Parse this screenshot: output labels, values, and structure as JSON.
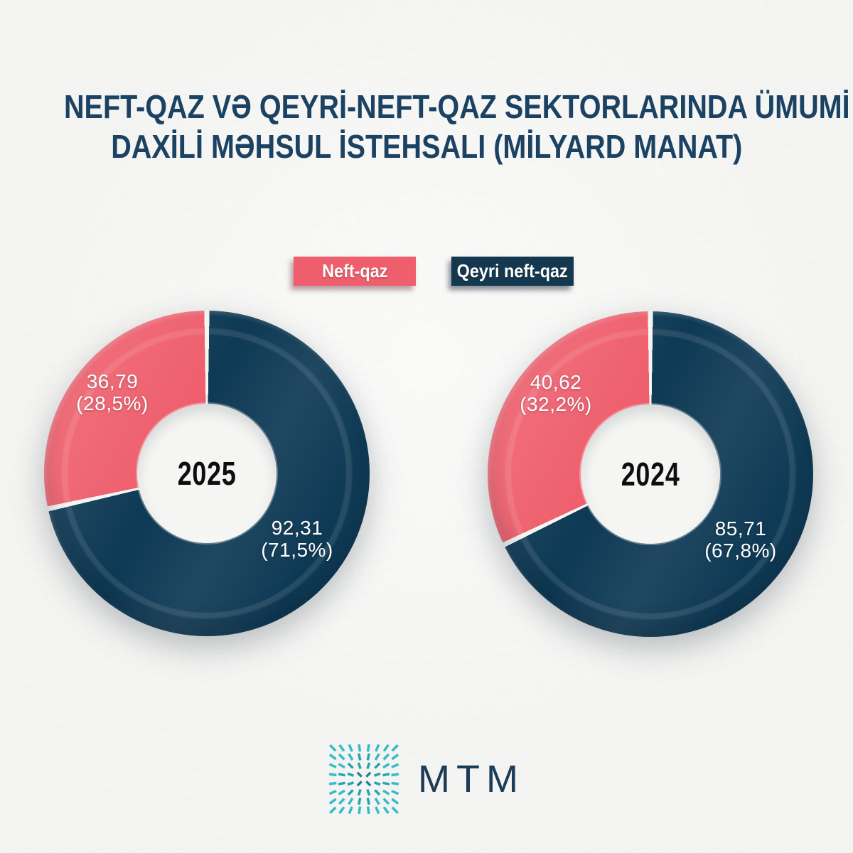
{
  "title": {
    "line1": "NEFT-QAZ VƏ QEYRİ-NEFT-QAZ SEKTORLARINDA ÜMUMİ",
    "line2": "DAXİLİ MƏHSUL İSTEHSALI (MİLYARD MANAT)"
  },
  "legend": {
    "position": "top",
    "items": [
      {
        "label": "Neft-qaz",
        "color": "#ef5e6c"
      },
      {
        "label": "Qeyri neft-qaz",
        "color": "#14384f"
      }
    ]
  },
  "chart_data": [
    {
      "type": "pie",
      "style": "donut",
      "center_label": "2025",
      "categories": [
        "Neft-qaz",
        "Qeyri neft-qaz"
      ],
      "values": [
        36.79,
        92.31
      ],
      "percents": [
        28.5,
        71.5
      ],
      "value_labels": [
        "36,79",
        "92,31"
      ],
      "percent_labels": [
        "(28,5%)",
        "(71,5%)"
      ],
      "colors": [
        "#ef5e6c",
        "#0f3a55"
      ],
      "start_angle": "top",
      "direction": "clockwise, Qeyri neft-qaz first",
      "units": "milyard manat"
    },
    {
      "type": "pie",
      "style": "donut",
      "center_label": "2024",
      "categories": [
        "Neft-qaz",
        "Qeyri neft-qaz"
      ],
      "values": [
        40.62,
        85.71
      ],
      "percents": [
        32.2,
        67.8
      ],
      "value_labels": [
        "40,62",
        "85,71"
      ],
      "percent_labels": [
        "(32,2%)",
        "(67,8%)"
      ],
      "colors": [
        "#ef5e6c",
        "#0f3a55"
      ],
      "start_angle": "top",
      "direction": "clockwise, Qeyri neft-qaz first",
      "units": "milyard manat"
    }
  ],
  "colors": {
    "background": "#f4f4f2",
    "gap": "#f5f5f3",
    "title_text": "#1b4263",
    "oil_pink": "#ef5e6c",
    "non_oil_navy": "#0f3a55",
    "legend_navy": "#14384f",
    "year_text": "#0e0e0e",
    "logo_teal": "#2aaeb7",
    "logo_text_navy": "#1c3b57"
  },
  "logo": {
    "text": "MTM",
    "icon": "starburst-grid-icon"
  }
}
